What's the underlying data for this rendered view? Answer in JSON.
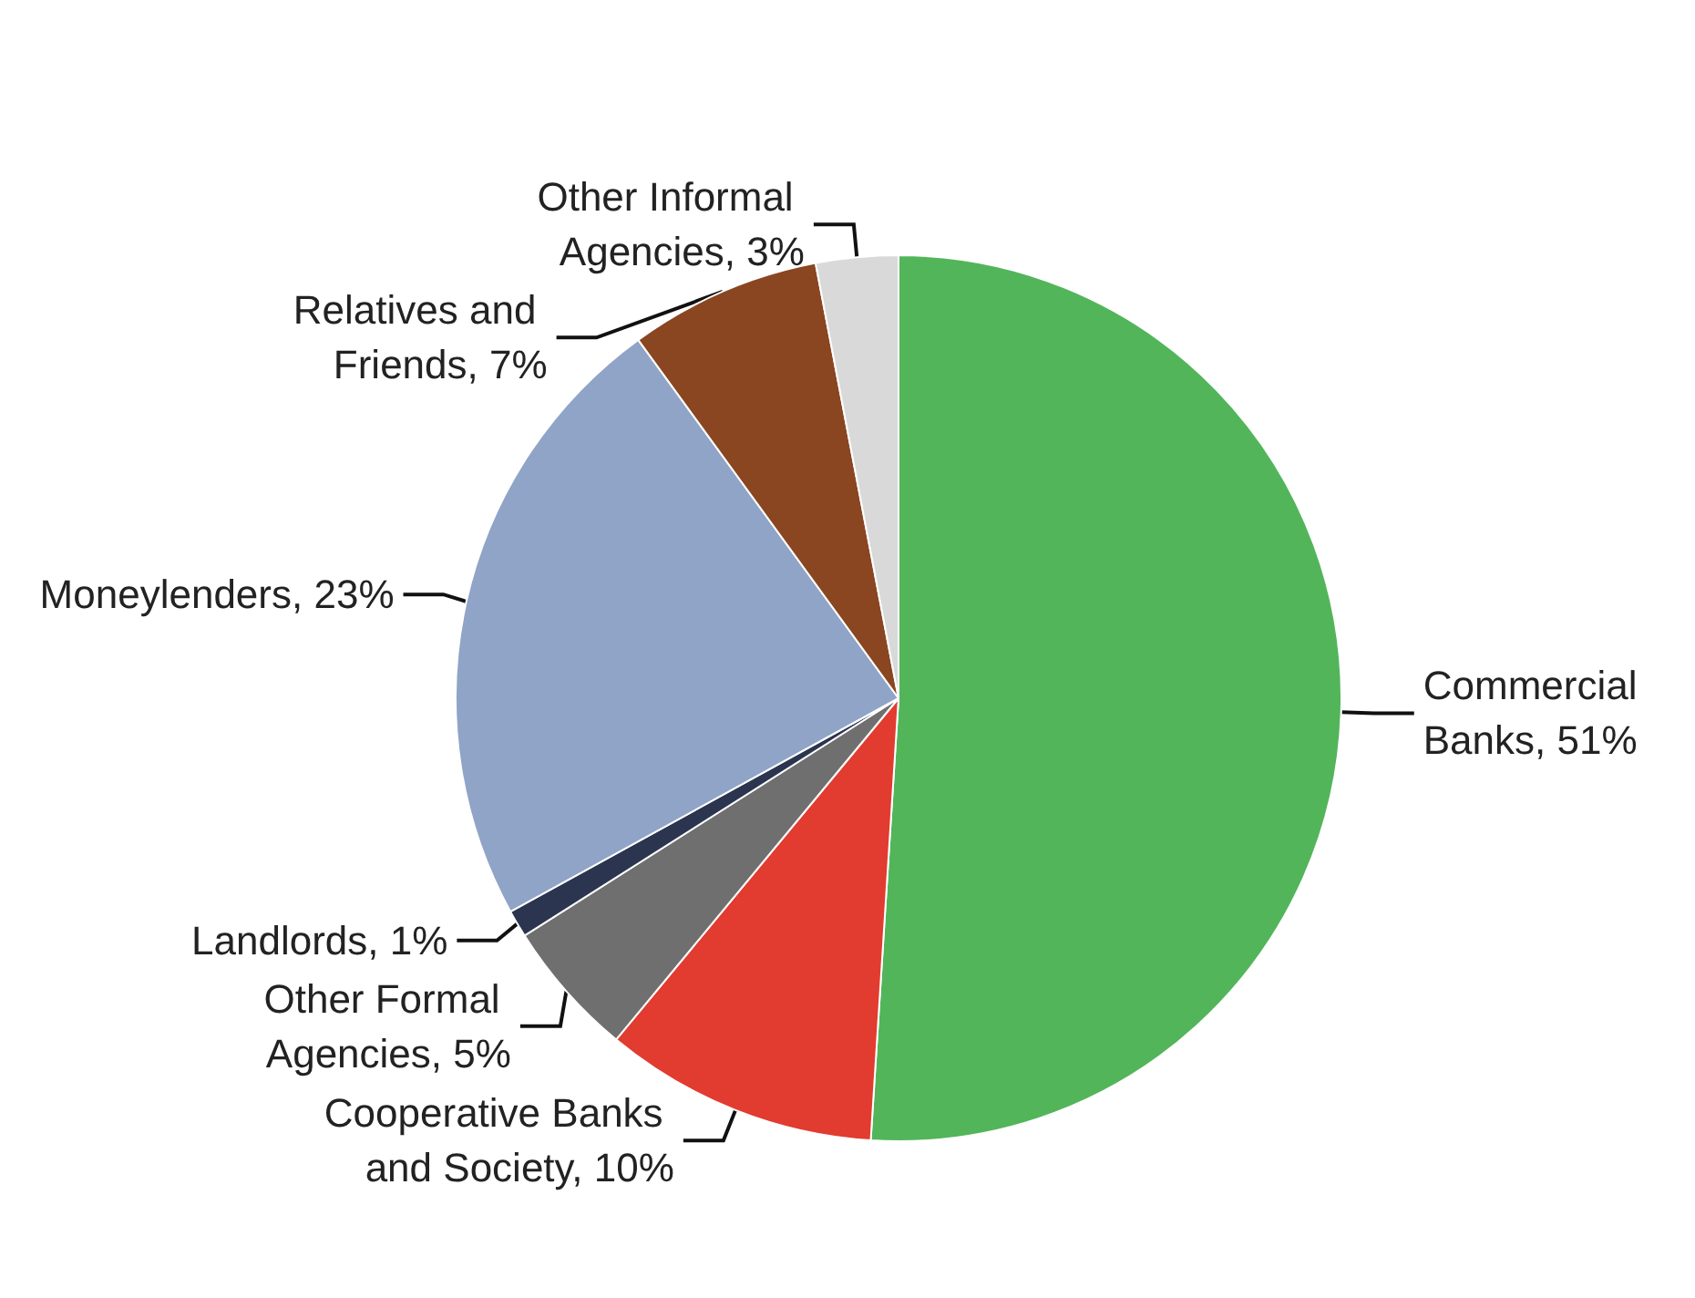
{
  "chart_data": {
    "type": "pie",
    "categories": [
      "Commercial Banks",
      "Cooperative Banks and Society",
      "Other Formal Agencies",
      "Landlords",
      "Moneylenders",
      "Relatives and Friends",
      "Other Informal Agencies"
    ],
    "values": [
      51,
      10,
      5,
      1,
      23,
      7,
      3
    ],
    "value_labels": [
      "51%",
      "10%",
      "5%",
      "1%",
      "23%",
      "7%",
      "3%"
    ],
    "colors": [
      "#52b55a",
      "#e23b30",
      "#6f6f6f",
      "#2b3550",
      "#8fa4c6",
      "#8a4620",
      "#d9d9d9"
    ],
    "legend": false
  }
}
